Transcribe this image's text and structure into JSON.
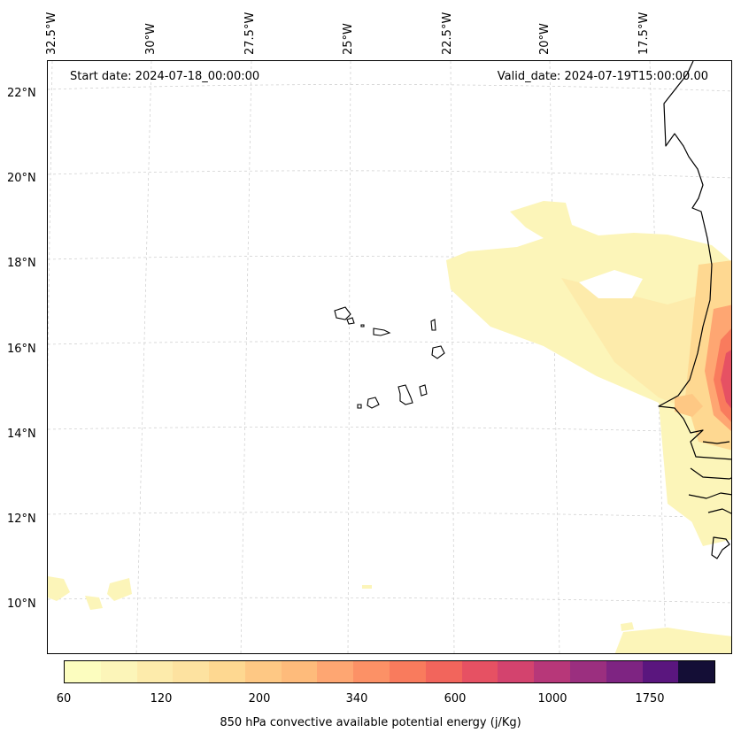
{
  "header": {
    "start_date": "Start date: 2024-07-18_00:00:00",
    "valid_date": "Valid_date: 2024-07-19T15:00:00.00"
  },
  "axes": {
    "lat_labels": [
      "22°N",
      "20°N",
      "18°N",
      "16°N",
      "14°N",
      "12°N",
      "10°N"
    ],
    "lon_labels": [
      "32.5°W",
      "30°W",
      "27.5°W",
      "25°W",
      "22.5°W",
      "20°W",
      "17.5°W"
    ],
    "gridlines": true
  },
  "colorbar": {
    "title": "850 hPa convective available potential energy (j/Kg)",
    "tick_labels": [
      "60",
      "120",
      "200",
      "340",
      "600",
      "1000",
      "1750"
    ],
    "colors": [
      "#fcfdbf",
      "#fcf5b9",
      "#fdebab",
      "#fde2a0",
      "#fed891",
      "#fec884",
      "#febb7b",
      "#fea672",
      "#fc9166",
      "#f97b5d",
      "#f2655c",
      "#e65163",
      "#d3436e",
      "#b73779",
      "#9b2f7f",
      "#7e2482",
      "#5a167e",
      "#140e36"
    ]
  },
  "map": {
    "field": "850 hPa convective available potential energy",
    "units": "j/Kg",
    "region": "Cabo Verde and West African coast"
  }
}
